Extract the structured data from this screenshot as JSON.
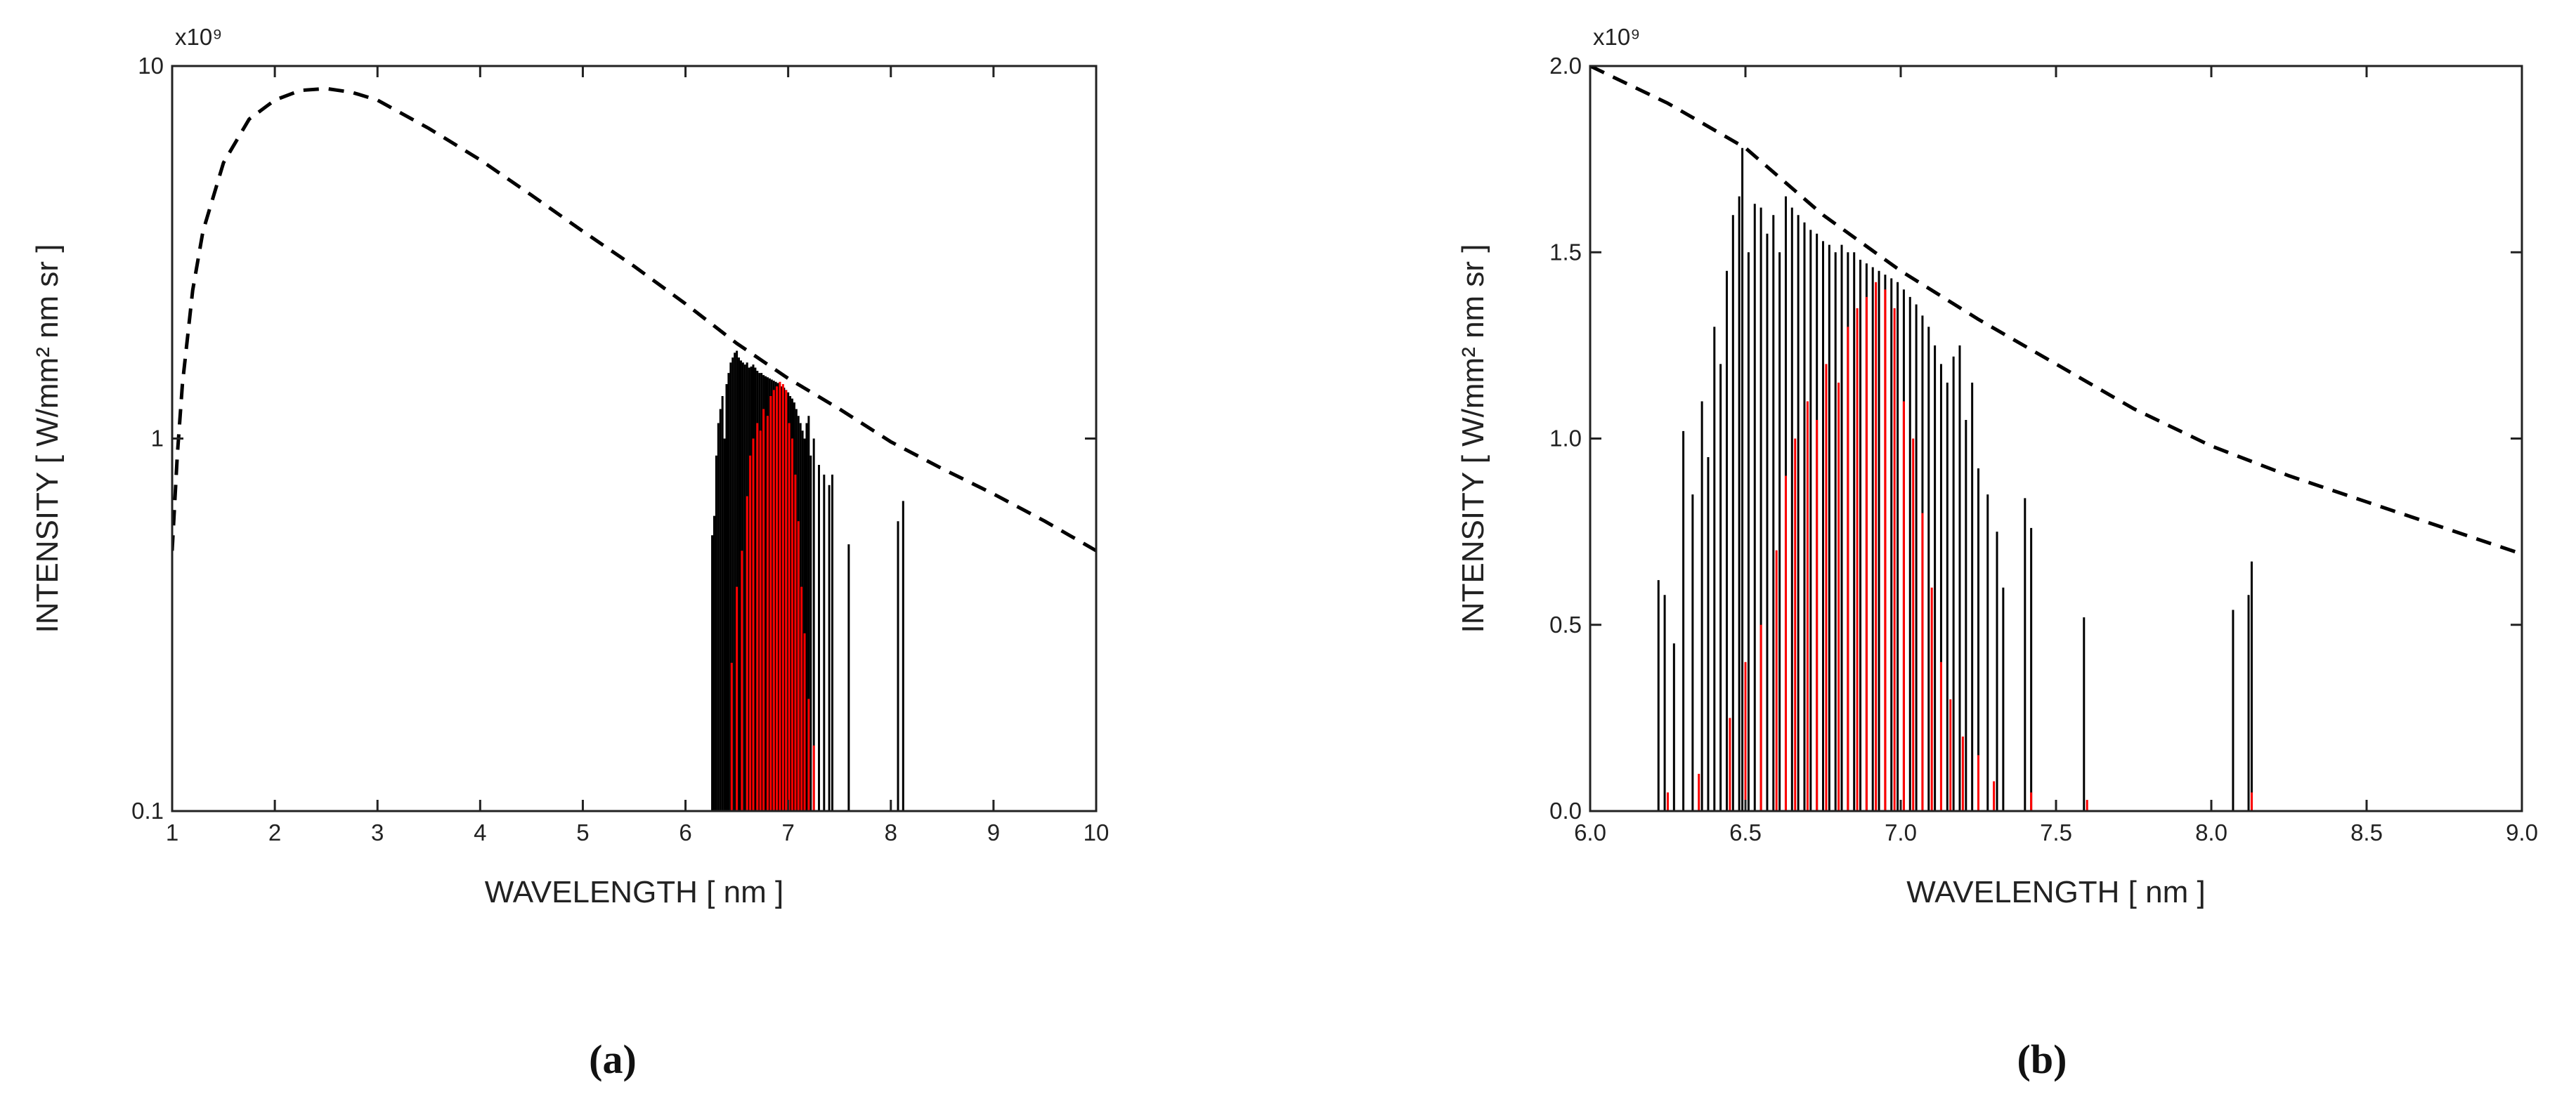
{
  "chart_data": [
    {
      "type": "line",
      "caption": "(a)",
      "multiplier": "x10⁹",
      "xlabel": "WAVELENGTH [ nm ]",
      "ylabel": "INTENSITY [ W/mm² nm sr ]",
      "xlim": [
        1,
        10
      ],
      "xticks": [
        1,
        2,
        3,
        4,
        5,
        6,
        7,
        8,
        9,
        10
      ],
      "ylim": [
        0.1,
        10
      ],
      "yticks": [
        0.1,
        1,
        10
      ],
      "ylog": true,
      "series": [
        {
          "style": "dashed",
          "color": "#000000",
          "x": [
            1,
            1.05,
            1.1,
            1.2,
            1.3,
            1.5,
            1.75,
            2,
            2.25,
            2.5,
            2.75,
            3,
            3.5,
            4,
            4.5,
            5,
            5.5,
            6,
            6.5,
            7,
            7.5,
            8,
            8.5,
            9,
            9.5,
            10
          ],
          "values": [
            0.5,
            0.9,
            1.4,
            2.5,
            3.6,
            5.5,
            7.2,
            8.1,
            8.6,
            8.7,
            8.5,
            8.1,
            6.8,
            5.6,
            4.5,
            3.6,
            2.9,
            2.3,
            1.8,
            1.45,
            1.2,
            0.98,
            0.83,
            0.71,
            0.6,
            0.5
          ]
        },
        {
          "style": "stem",
          "color": "#000000",
          "x": [
            6.26,
            6.28,
            6.3,
            6.32,
            6.34,
            6.36,
            6.38,
            6.4,
            6.42,
            6.44,
            6.46,
            6.48,
            6.5,
            6.52,
            6.54,
            6.56,
            6.58,
            6.6,
            6.62,
            6.64,
            6.66,
            6.68,
            6.7,
            6.72,
            6.74,
            6.76,
            6.78,
            6.8,
            6.82,
            6.84,
            6.86,
            6.88,
            6.9,
            6.92,
            6.94,
            6.96,
            6.98,
            7.0,
            7.02,
            7.04,
            7.06,
            7.08,
            7.1,
            7.12,
            7.14,
            7.16,
            7.18,
            7.2,
            7.22,
            7.25,
            7.3,
            7.35,
            7.4,
            7.43,
            7.59,
            8.07,
            8.12
          ],
          "values": [
            0.55,
            0.62,
            0.9,
            1.1,
            1.2,
            1.3,
            1.0,
            1.4,
            1.5,
            1.6,
            1.65,
            1.7,
            1.72,
            1.65,
            1.62,
            1.6,
            1.58,
            1.6,
            1.55,
            1.56,
            1.58,
            1.55,
            1.52,
            1.5,
            1.5,
            1.48,
            1.47,
            1.46,
            1.45,
            1.44,
            1.43,
            1.42,
            1.41,
            1.4,
            1.38,
            1.37,
            1.35,
            1.33,
            1.3,
            1.28,
            1.25,
            1.2,
            1.15,
            1.1,
            1.05,
            1.0,
            1.1,
            1.15,
            0.9,
            1.0,
            0.85,
            0.8,
            0.75,
            0.8,
            0.52,
            0.6,
            0.68
          ]
        },
        {
          "style": "stem",
          "color": "#ff0000",
          "x": [
            6.45,
            6.5,
            6.55,
            6.6,
            6.63,
            6.66,
            6.7,
            6.73,
            6.76,
            6.8,
            6.83,
            6.86,
            6.89,
            6.92,
            6.95,
            6.98,
            7.01,
            7.04,
            7.07,
            7.1,
            7.13,
            7.16,
            7.2,
            7.25
          ],
          "values": [
            0.25,
            0.4,
            0.5,
            0.7,
            0.9,
            1.0,
            1.1,
            1.05,
            1.2,
            1.15,
            1.3,
            1.35,
            1.38,
            1.42,
            1.4,
            1.35,
            1.1,
            1.0,
            0.8,
            0.6,
            0.4,
            0.3,
            0.2,
            0.15
          ]
        }
      ]
    },
    {
      "type": "line",
      "caption": "(b)",
      "multiplier": "x10⁹",
      "xlabel": "WAVELENGTH [ nm ]",
      "ylabel": "INTENSITY [ W/mm² nm sr ]",
      "xlim": [
        6,
        9
      ],
      "xticks": [
        {
          "value": 6,
          "label": "6.0"
        },
        6.5,
        {
          "value": 7,
          "label": "7.0"
        },
        7.5,
        {
          "value": 8,
          "label": "8.0"
        },
        8.5,
        {
          "value": 9,
          "label": "9.0"
        }
      ],
      "ylim": [
        0,
        2
      ],
      "yticks": [
        {
          "value": 0,
          "label": "0.0"
        },
        0.5,
        {
          "value": 1,
          "label": "1.0"
        },
        1.5,
        {
          "value": 2,
          "label": "2.0"
        }
      ],
      "ylog": false,
      "series": [
        {
          "style": "dashed",
          "color": "#000000",
          "x": [
            6,
            6.25,
            6.5,
            6.75,
            7,
            7.25,
            7.5,
            7.75,
            8,
            8.25,
            8.5,
            8.75,
            9
          ],
          "values": [
            2.0,
            1.9,
            1.78,
            1.6,
            1.45,
            1.32,
            1.2,
            1.08,
            0.98,
            0.9,
            0.83,
            0.76,
            0.69
          ]
        },
        {
          "style": "stem",
          "color": "#000000",
          "x": [
            6.22,
            6.24,
            6.27,
            6.3,
            6.33,
            6.36,
            6.38,
            6.4,
            6.42,
            6.44,
            6.46,
            6.48,
            6.49,
            6.51,
            6.53,
            6.55,
            6.57,
            6.59,
            6.61,
            6.63,
            6.65,
            6.67,
            6.69,
            6.71,
            6.73,
            6.75,
            6.77,
            6.79,
            6.81,
            6.83,
            6.85,
            6.87,
            6.89,
            6.91,
            6.93,
            6.95,
            6.97,
            6.99,
            7.01,
            7.03,
            7.05,
            7.07,
            7.09,
            7.11,
            7.13,
            7.15,
            7.17,
            7.19,
            7.21,
            7.23,
            7.25,
            7.28,
            7.31,
            7.33,
            7.4,
            7.42,
            7.59,
            8.07,
            8.12,
            8.13
          ],
          "values": [
            0.62,
            0.58,
            0.45,
            1.02,
            0.85,
            1.1,
            0.95,
            1.3,
            1.2,
            1.45,
            1.6,
            1.65,
            1.78,
            1.5,
            1.63,
            1.62,
            1.55,
            1.6,
            1.5,
            1.65,
            1.62,
            1.6,
            1.58,
            1.56,
            1.55,
            1.53,
            1.52,
            1.5,
            1.52,
            1.5,
            1.5,
            1.48,
            1.47,
            1.46,
            1.45,
            1.44,
            1.43,
            1.42,
            1.4,
            1.38,
            1.36,
            1.33,
            1.3,
            1.25,
            1.2,
            1.15,
            1.22,
            1.25,
            1.05,
            1.15,
            0.92,
            0.85,
            0.75,
            0.6,
            0.84,
            0.76,
            0.52,
            0.54,
            0.58,
            0.67
          ]
        },
        {
          "style": "stem",
          "color": "#ff0000",
          "x": [
            6.25,
            6.35,
            6.45,
            6.5,
            6.55,
            6.6,
            6.63,
            6.66,
            6.7,
            6.73,
            6.76,
            6.8,
            6.83,
            6.86,
            6.89,
            6.92,
            6.95,
            6.98,
            7.01,
            7.04,
            7.07,
            7.1,
            7.13,
            7.16,
            7.2,
            7.25,
            7.3,
            7.42,
            7.6,
            8.13
          ],
          "values": [
            0.05,
            0.1,
            0.25,
            0.4,
            0.5,
            0.7,
            0.9,
            1.0,
            1.1,
            1.05,
            1.2,
            1.15,
            1.3,
            1.35,
            1.38,
            1.42,
            1.4,
            1.35,
            1.1,
            1.0,
            0.8,
            0.6,
            0.4,
            0.3,
            0.2,
            0.15,
            0.08,
            0.05,
            0.03,
            0.05
          ]
        }
      ]
    }
  ]
}
